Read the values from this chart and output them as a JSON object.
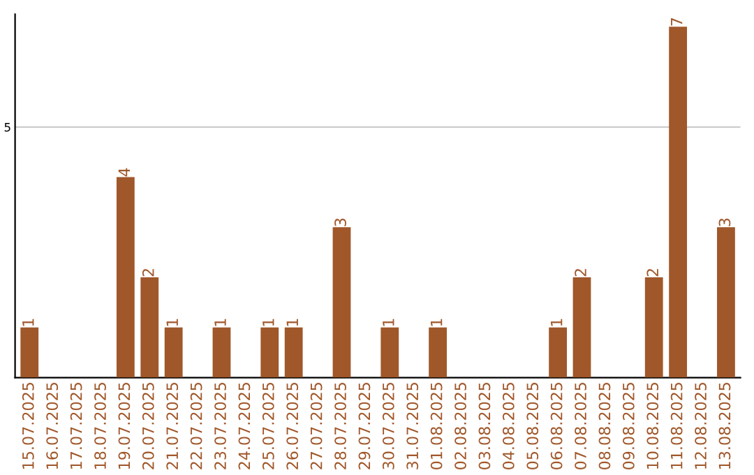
{
  "chart_data": {
    "type": "bar",
    "categories": [
      "15.07.2025",
      "16.07.2025",
      "17.07.2025",
      "18.07.2025",
      "19.07.2025",
      "20.07.2025",
      "21.07.2025",
      "22.07.2025",
      "23.07.2025",
      "24.07.2025",
      "25.07.2025",
      "26.07.2025",
      "27.07.2025",
      "28.07.2025",
      "29.07.2025",
      "30.07.2025",
      "31.07.2025",
      "01.08.2025",
      "02.08.2025",
      "03.08.2025",
      "04.08.2025",
      "05.08.2025",
      "06.08.2025",
      "07.08.2025",
      "08.08.2025",
      "09.08.2025",
      "10.08.2025",
      "11.08.2025",
      "12.08.2025",
      "13.08.2025"
    ],
    "values": [
      1,
      0,
      0,
      0,
      4,
      2,
      1,
      0,
      1,
      0,
      1,
      1,
      0,
      3,
      0,
      1,
      0,
      1,
      0,
      0,
      0,
      0,
      1,
      2,
      0,
      0,
      2,
      7,
      0,
      3
    ],
    "value_labels": [
      "1",
      null,
      null,
      null,
      "4",
      "2",
      "1",
      null,
      "1",
      null,
      "1",
      "1",
      null,
      "3",
      null,
      "1",
      null,
      "1",
      null,
      null,
      null,
      null,
      "1",
      "2",
      null,
      null,
      "2",
      "7",
      null,
      "3"
    ],
    "color": "#a0572a",
    "ylim": [
      0,
      7.25
    ],
    "yticks": [
      5
    ],
    "grid": "y"
  }
}
